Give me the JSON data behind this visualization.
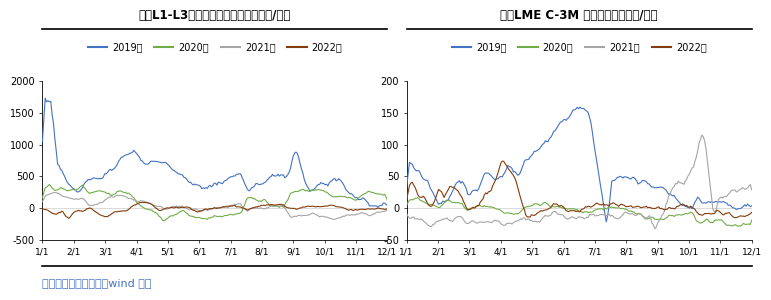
{
  "title1": "锌：L1-L3期货月差季节图（单位：元/吟）",
  "title2": "锌：LME C-3M 季节图（单位：元/吟）",
  "footer": "数据来源：銀河期货、wind 资讯",
  "legend_labels": [
    "2019年",
    "2020年",
    "2021年",
    "2022年"
  ],
  "colors": [
    "#4472C4",
    "#70AD47",
    "#A5A5A5",
    "#843C0C"
  ],
  "xlabels": [
    "1/1",
    "2/1",
    "3/1",
    "4/1",
    "5/1",
    "6/1",
    "7/1",
    "8/1",
    "9/1",
    "10/1",
    "11/1",
    "12/1"
  ],
  "chart1": {
    "ylim": [
      -500,
      2000
    ],
    "yticks": [
      -500,
      0,
      500,
      1000,
      1500,
      2000
    ]
  },
  "chart2": {
    "ylim": [
      -50,
      200
    ],
    "yticks": [
      -50,
      0,
      50,
      100,
      150,
      200
    ]
  }
}
